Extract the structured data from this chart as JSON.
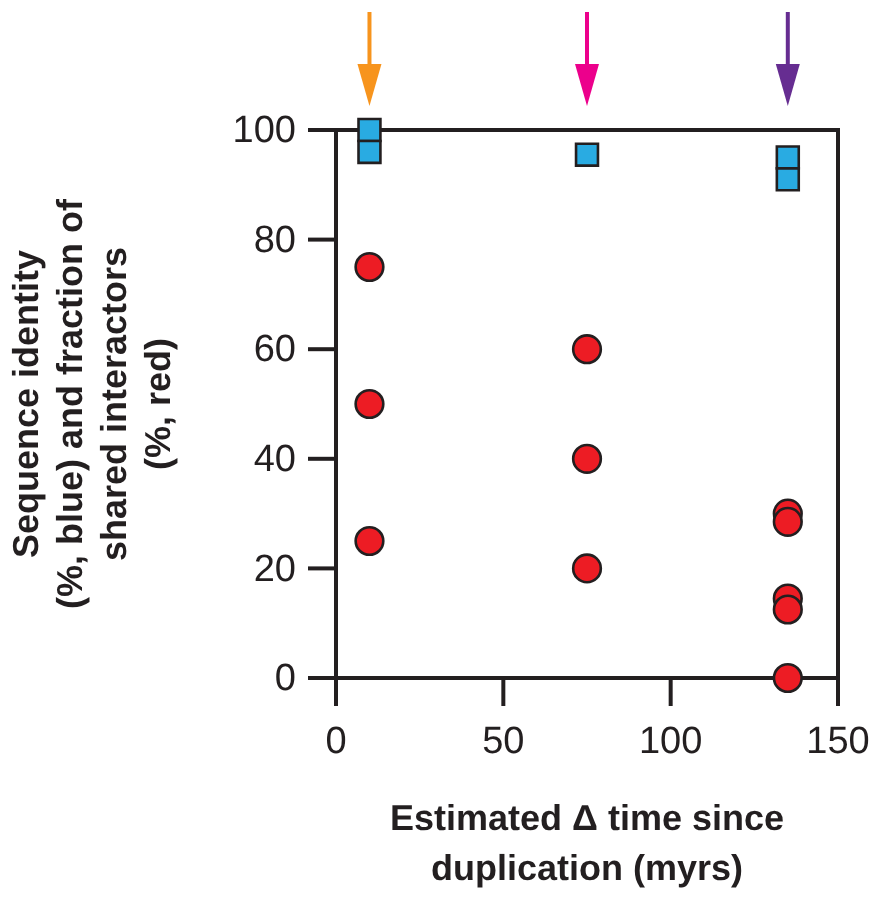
{
  "chart_data": {
    "type": "scatter",
    "xlabel": "Estimated Δ time since\nduplication (myrs)",
    "ylabel": "Sequence identity\n(%, blue) and fraction of\nshared interactors\n(%, red)",
    "series": [
      {
        "color": "#29abe2",
        "marker": "square",
        "x": [
          10,
          10,
          75,
          135,
          135
        ],
        "values": [
          100,
          96,
          95.5,
          95,
          91
        ]
      },
      {
        "color": "#ed1c24",
        "marker": "circle",
        "x": [
          10,
          10,
          10,
          75,
          75,
          75,
          135,
          135,
          135,
          135,
          135
        ],
        "values": [
          75,
          50,
          25,
          60,
          40,
          20,
          30,
          28.5,
          14.5,
          12.5,
          0
        ]
      }
    ],
    "xlim": [
      0,
      150
    ],
    "xticks": [
      0,
      50,
      100,
      150
    ],
    "ylim": [
      0,
      100
    ],
    "yticks": [
      0,
      20,
      40,
      60,
      80,
      100
    ],
    "grid": false
  }
}
